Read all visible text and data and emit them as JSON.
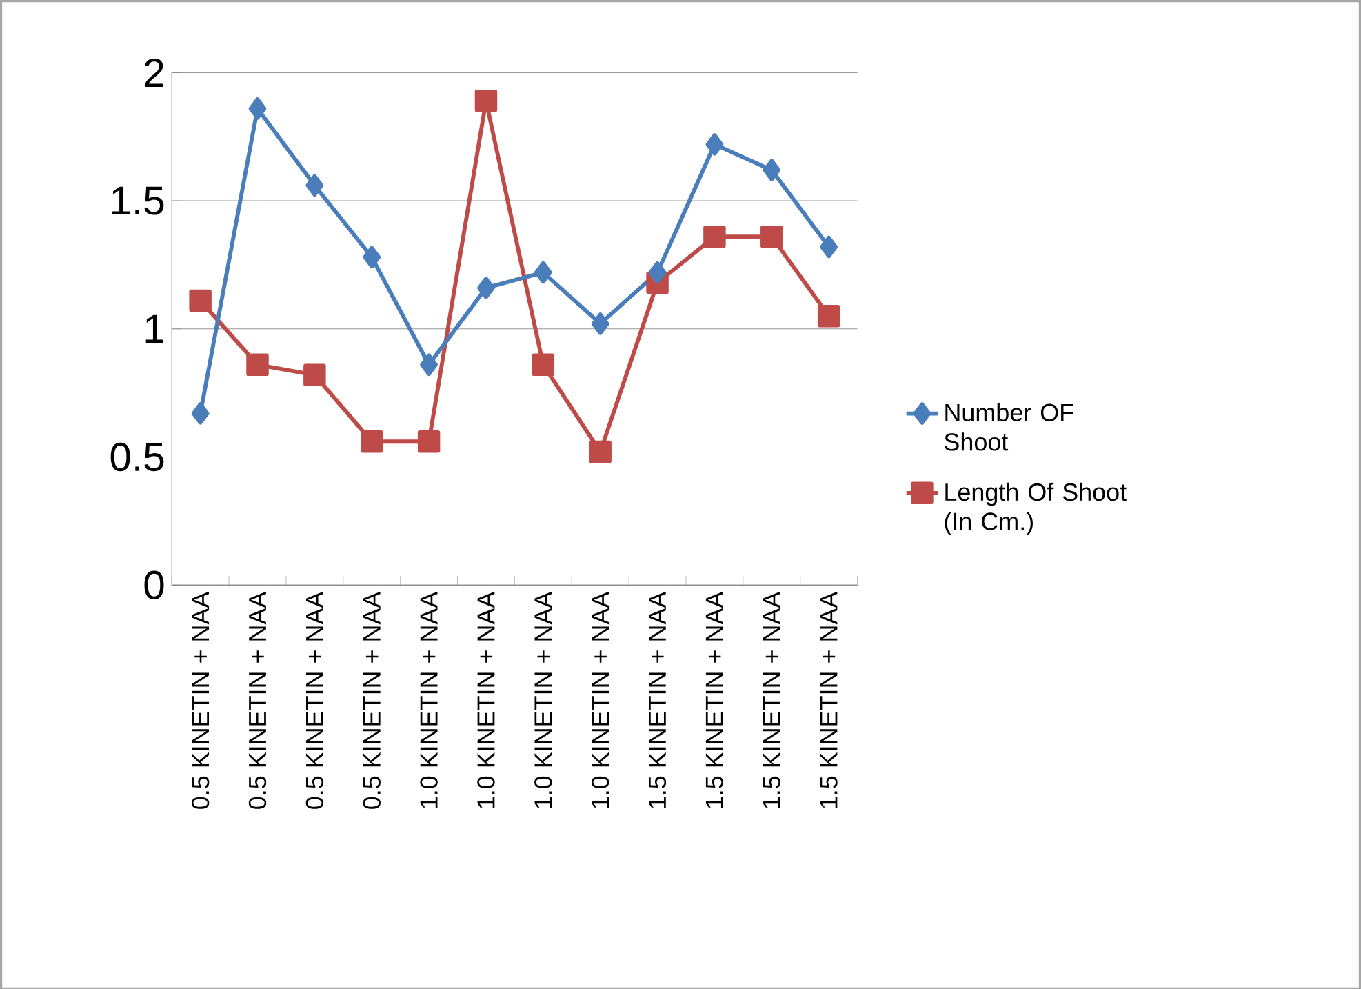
{
  "chart_data": {
    "type": "line",
    "categories": [
      "0.5 KINETIN + NAA",
      "0.5 KINETIN + NAA",
      "0.5 KINETIN + NAA",
      "0.5 KINETIN + NAA",
      "1.0 KINETIN + NAA",
      "1.0 KINETIN + NAA",
      "1.0 KINETIN + NAA",
      "1.0 KINETIN + NAA",
      "1.5 KINETIN + NAA",
      "1.5 KINETIN + NAA",
      "1.5 KINETIN + NAA",
      "1.5 KINETIN + NAA"
    ],
    "series": [
      {
        "name": "Number OF Shoot",
        "color": "#4a7ebb",
        "marker": "diamond",
        "values": [
          0.67,
          1.86,
          1.56,
          1.28,
          0.86,
          1.16,
          1.22,
          1.02,
          1.22,
          1.72,
          1.62,
          1.32
        ]
      },
      {
        "name": "Length Of Shoot (In Cm.)",
        "color": "#be4b48",
        "marker": "square",
        "values": [
          1.11,
          0.86,
          0.82,
          0.56,
          0.56,
          1.89,
          0.86,
          0.52,
          1.18,
          1.36,
          1.36,
          1.05
        ]
      }
    ],
    "ylim": [
      0,
      2
    ],
    "yticks": [
      0,
      0.5,
      1,
      1.5,
      2
    ],
    "grid": "y",
    "legend": "right",
    "line_style": "solid"
  }
}
